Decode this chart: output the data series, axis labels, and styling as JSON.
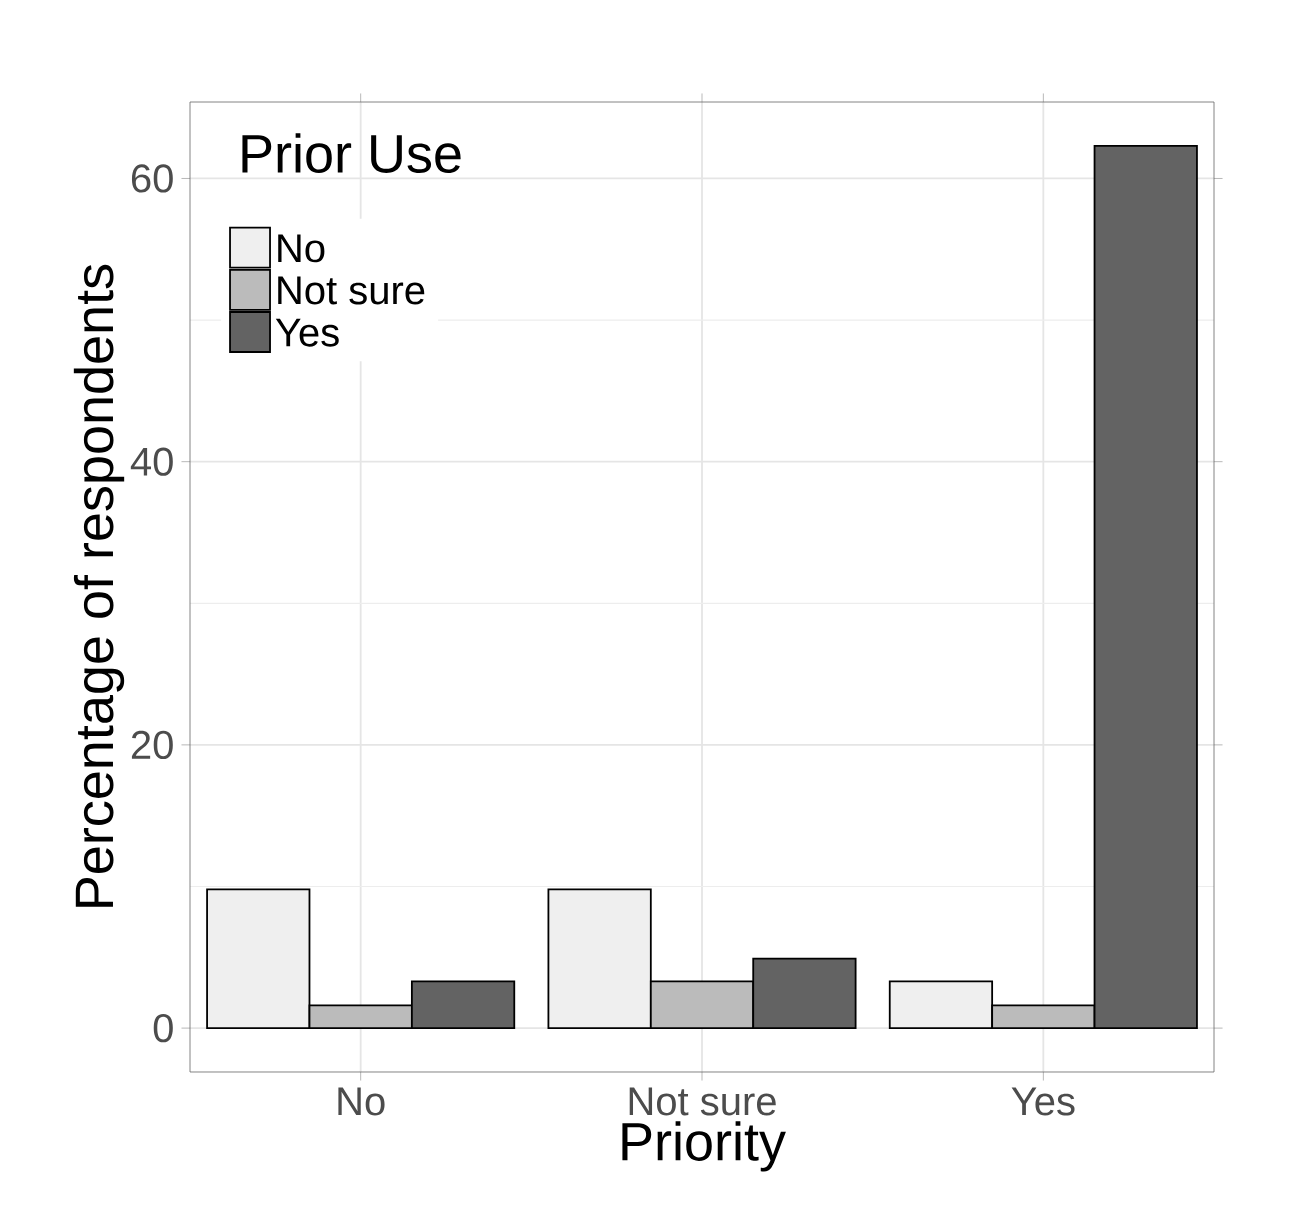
{
  "chart_data": {
    "type": "bar",
    "xlabel": "Priority",
    "ylabel": "Percentage of respondents",
    "legend_title": "Prior Use",
    "categories": [
      "No",
      "Not sure",
      "Yes"
    ],
    "series": [
      {
        "name": "No",
        "color": "#efefef",
        "values": [
          9.8,
          9.8,
          3.3
        ]
      },
      {
        "name": "Not sure",
        "color": "#bbbbbb",
        "values": [
          1.6,
          3.3,
          1.6
        ]
      },
      {
        "name": "Yes",
        "color": "#636363",
        "values": [
          3.3,
          4.9,
          62.3
        ]
      }
    ],
    "ylim": [
      -3.1,
      65.4
    ],
    "yticks": [
      0,
      20,
      40,
      60
    ],
    "grid": true,
    "legend": "top left"
  }
}
